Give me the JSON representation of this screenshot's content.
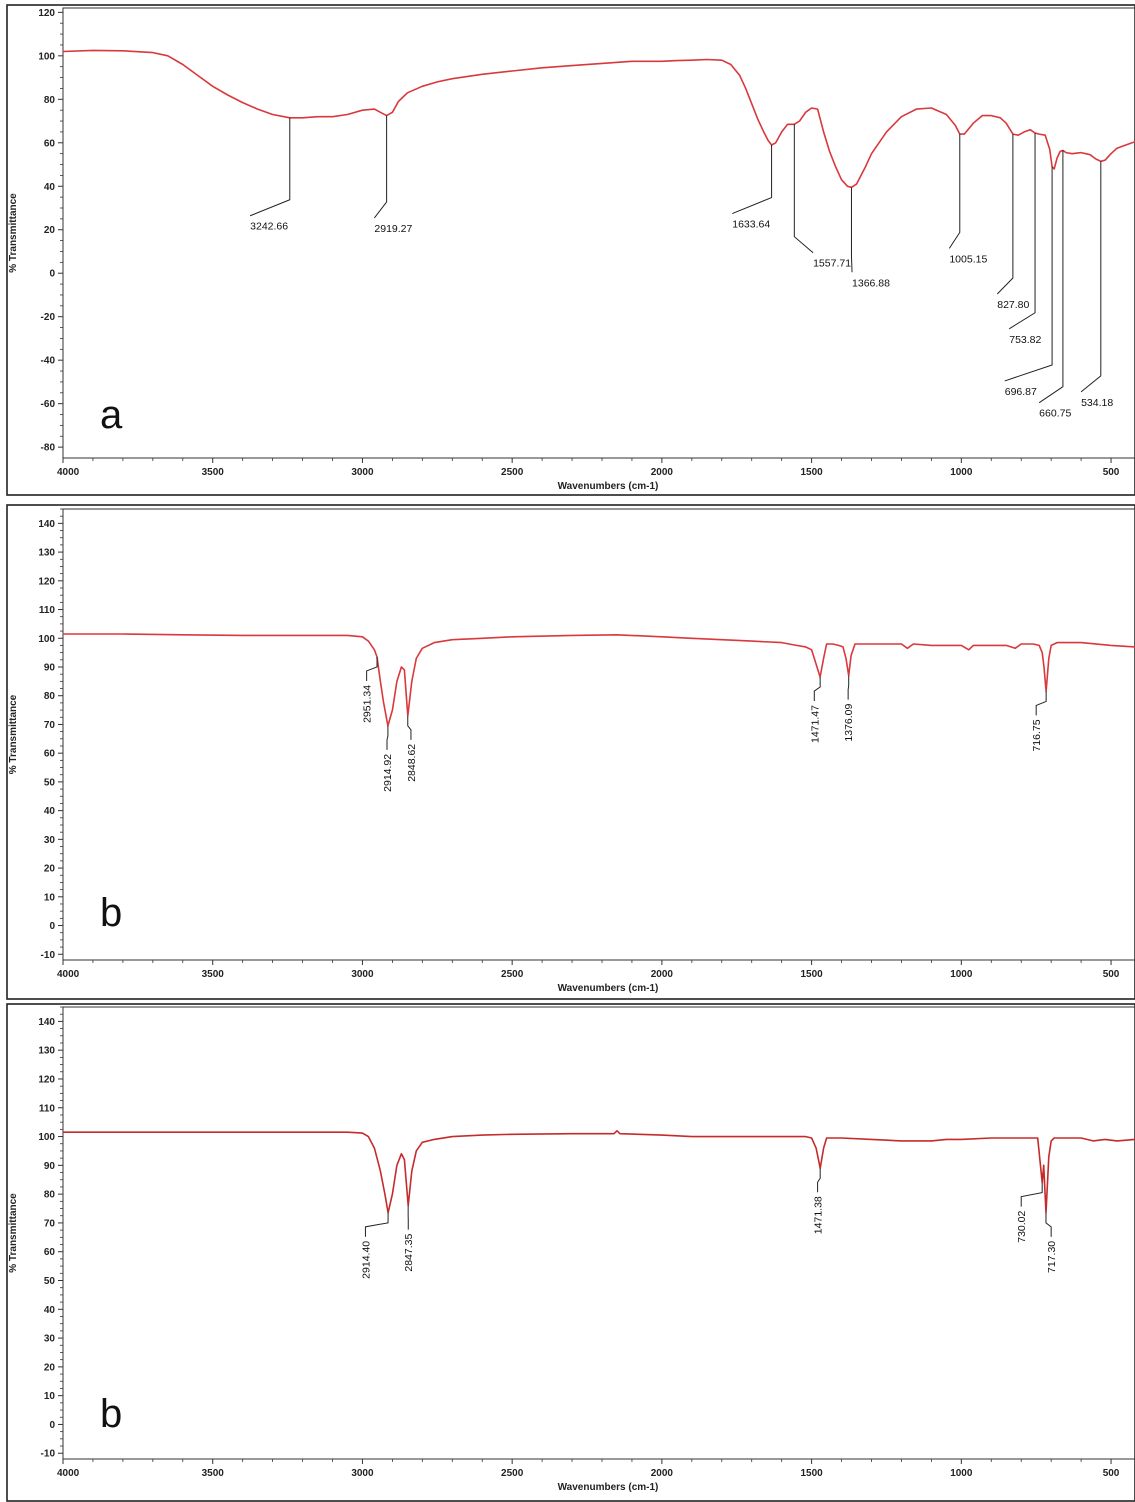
{
  "chart_data": [
    {
      "type": "line",
      "panel_label": "a",
      "xlabel": "Wavenumbers (cm-1)",
      "ylabel": "% Transmittance",
      "xlim": [
        4000,
        420
      ],
      "ylim": [
        -85,
        122
      ],
      "x_ticks": [
        4000,
        3500,
        3000,
        2500,
        2000,
        1500,
        1000,
        500
      ],
      "y_ticks": [
        -80,
        -60,
        -40,
        -20,
        0,
        20,
        40,
        60,
        80,
        100,
        120
      ],
      "line_color": "#d9383c",
      "series": [
        {
          "x": [
            4000,
            3900,
            3800,
            3700,
            3650,
            3600,
            3550,
            3500,
            3450,
            3400,
            3350,
            3300,
            3242.66,
            3200,
            3150,
            3100,
            3050,
            3000,
            2960,
            2940,
            2919.27,
            2900,
            2880,
            2850,
            2800,
            2750,
            2700,
            2600,
            2500,
            2400,
            2300,
            2200,
            2100,
            2000,
            1950,
            1900,
            1850,
            1800,
            1770,
            1740,
            1720,
            1700,
            1680,
            1660,
            1645,
            1633.64,
            1620,
            1600,
            1580,
            1557.71,
            1540,
            1520,
            1500,
            1480,
            1460,
            1440,
            1420,
            1400,
            1380,
            1366.88,
            1350,
            1320,
            1300,
            1250,
            1200,
            1150,
            1100,
            1050,
            1020,
            1005.15,
            990,
            960,
            930,
            900,
            870,
            850,
            827.8,
            810,
            790,
            770,
            753.82,
            740,
            720,
            705,
            696.87,
            690,
            680,
            670,
            660.75,
            650,
            630,
            600,
            570,
            550,
            534.18,
            520,
            500,
            480,
            460,
            440,
            420
          ],
          "y": [
            102,
            102.5,
            102.3,
            101.5,
            100,
            96,
            91,
            86,
            82,
            78.5,
            75.5,
            73,
            71.5,
            71.5,
            72,
            72,
            73,
            75,
            75.5,
            74,
            72.5,
            74,
            79,
            83,
            86,
            88,
            89.5,
            91.5,
            93,
            94.5,
            95.5,
            96.5,
            97.5,
            97.5,
            97.8,
            98,
            98.3,
            98,
            96,
            91,
            85,
            78,
            71,
            65,
            61,
            59,
            60,
            65,
            68.5,
            68.5,
            70,
            74,
            76,
            75.5,
            65,
            56,
            49,
            43,
            40,
            39.5,
            41,
            49,
            55,
            65,
            72,
            75.5,
            76,
            73,
            68,
            64,
            64,
            69,
            72.5,
            72.5,
            71.5,
            69,
            64,
            63.5,
            65,
            66,
            64.5,
            64,
            63.5,
            57,
            49,
            48,
            53,
            56,
            56.5,
            55.5,
            55,
            55.5,
            54.5,
            52.5,
            51.5,
            52,
            55,
            57.5,
            58.5,
            59.5,
            60.5
          ]
        }
      ],
      "peaks": [
        {
          "label": "3242.66",
          "x": 3242.66,
          "y": 71.5,
          "label_x": 3375,
          "label_y": 20
        },
        {
          "label": "2919.27",
          "x": 2919.27,
          "y": 72.5,
          "label_x": 2960,
          "label_y": 19
        },
        {
          "label": "1633.64",
          "x": 1633.64,
          "y": 59,
          "label_x": 1765,
          "label_y": 21
        },
        {
          "label": "1557.71",
          "x": 1557.71,
          "y": 68.5,
          "label_x": 1495,
          "label_y": 3
        },
        {
          "label": "1366.88",
          "x": 1366.88,
          "y": 39.5,
          "label_x": 1365,
          "label_y": -6
        },
        {
          "label": "1005.15",
          "x": 1005.15,
          "y": 64,
          "label_x": 1040,
          "label_y": 5
        },
        {
          "label": "827.80",
          "x": 827.8,
          "y": 64,
          "label_x": 880,
          "label_y": -16
        },
        {
          "label": "753.82",
          "x": 753.82,
          "y": 64.5,
          "label_x": 840,
          "label_y": -32
        },
        {
          "label": "696.87",
          "x": 696.87,
          "y": 49,
          "label_x": 855,
          "label_y": -56
        },
        {
          "label": "660.75",
          "x": 660.75,
          "y": 56.5,
          "label_x": 740,
          "label_y": -66
        },
        {
          "label": "534.18",
          "x": 534.18,
          "y": 51.5,
          "label_x": 600,
          "label_y": -61
        }
      ]
    },
    {
      "type": "line",
      "panel_label": "b",
      "xlabel": "Wavenumbers (cm-1)",
      "ylabel": "% Transmittance",
      "xlim": [
        4000,
        420
      ],
      "ylim": [
        -12,
        145
      ],
      "x_ticks": [
        4000,
        3500,
        3000,
        2500,
        2000,
        1500,
        1000,
        500
      ],
      "y_ticks": [
        -10,
        0,
        10,
        20,
        30,
        40,
        50,
        60,
        70,
        80,
        90,
        100,
        110,
        120,
        130,
        140
      ],
      "line_color": "#d9383c",
      "series": [
        {
          "x": [
            4000,
            3800,
            3600,
            3400,
            3200,
            3050,
            3000,
            2980,
            2960,
            2951.34,
            2940,
            2930,
            2914.92,
            2900,
            2885,
            2870,
            2860,
            2848.62,
            2835,
            2820,
            2800,
            2760,
            2700,
            2600,
            2500,
            2300,
            2150,
            2000,
            1900,
            1800,
            1700,
            1600,
            1550,
            1520,
            1500,
            1485,
            1471.47,
            1460,
            1450,
            1430,
            1410,
            1395,
            1385,
            1376.09,
            1368,
            1355,
            1330,
            1300,
            1250,
            1200,
            1180,
            1160,
            1100,
            1000,
            975,
            960,
            900,
            850,
            820,
            800,
            760,
            740,
            730,
            724,
            716.75,
            708,
            700,
            680,
            600,
            500,
            420
          ],
          "y": [
            101.5,
            101.5,
            101.2,
            101,
            101,
            101,
            100.5,
            99,
            96,
            93.5,
            85,
            78,
            69.5,
            75,
            85,
            90,
            89,
            73,
            85,
            93,
            96.5,
            98.5,
            99.5,
            100,
            100.5,
            101,
            101.2,
            100.5,
            100,
            99.5,
            99,
            98.5,
            97.5,
            97,
            96,
            91,
            86.5,
            93,
            98,
            98,
            97.5,
            97,
            93,
            87,
            94,
            98,
            98,
            98,
            98,
            98,
            96.5,
            98,
            97.5,
            97.5,
            96,
            97.5,
            97.5,
            97.5,
            96.5,
            98,
            98,
            97.5,
            95,
            90,
            81.5,
            93,
            97.5,
            98.5,
            98.5,
            97.5,
            97
          ]
        }
      ],
      "peaks": [
        {
          "label": "2951.34",
          "x": 2951.34,
          "y": 93.5,
          "label_x": 2986,
          "label_y": 76,
          "rotated": true
        },
        {
          "label": "2914.92",
          "x": 2914.92,
          "y": 69.5,
          "label_x": 2918,
          "label_y": 70,
          "rotated": true
        },
        {
          "label": "2848.62",
          "x": 2848.62,
          "y": 73,
          "label_x": 2838,
          "label_y": 68,
          "rotated": true
        },
        {
          "label": "1471.47",
          "x": 1471.47,
          "y": 86.5,
          "label_x": 1491,
          "label_y": 82,
          "rotated": true
        },
        {
          "label": "1376.09",
          "x": 1376.09,
          "y": 87,
          "label_x": 1378,
          "label_y": 82,
          "rotated": true
        },
        {
          "label": "716.75",
          "x": 716.75,
          "y": 81.5,
          "label_x": 750,
          "label_y": 80,
          "rotated": true
        }
      ]
    },
    {
      "type": "line",
      "panel_label": "b",
      "xlabel": "Wavenumbers (cm-1)",
      "ylabel": "% Transmittance",
      "xlim": [
        4000,
        420
      ],
      "ylim": [
        -12,
        145
      ],
      "x_ticks": [
        4000,
        3500,
        3000,
        2500,
        2000,
        1500,
        1000,
        500
      ],
      "y_ticks": [
        -10,
        0,
        10,
        20,
        30,
        40,
        50,
        60,
        70,
        80,
        90,
        100,
        110,
        120,
        130,
        140
      ],
      "line_color": "#c52b2b",
      "series": [
        {
          "x": [
            4000,
            3800,
            3600,
            3400,
            3200,
            3050,
            3000,
            2980,
            2960,
            2940,
            2925,
            2914.4,
            2900,
            2885,
            2870,
            2860,
            2847.35,
            2835,
            2820,
            2800,
            2760,
            2700,
            2600,
            2500,
            2300,
            2160,
            2150,
            2140,
            2000,
            1900,
            1800,
            1700,
            1600,
            1520,
            1500,
            1485,
            1471.38,
            1460,
            1450,
            1400,
            1300,
            1200,
            1150,
            1100,
            1050,
            1000,
            900,
            800,
            760,
            745,
            730.02,
            725,
            717.3,
            708,
            700,
            690,
            600,
            560,
            520,
            480,
            420
          ],
          "y": [
            101.5,
            101.5,
            101.5,
            101.5,
            101.5,
            101.5,
            101.2,
            100,
            96,
            88,
            80,
            73.5,
            80,
            90,
            94,
            92,
            76,
            88,
            95,
            98,
            99,
            100,
            100.5,
            100.8,
            101,
            101,
            102,
            101,
            100.5,
            100,
            100,
            100,
            100,
            100,
            99.5,
            96,
            89,
            96,
            99.5,
            99.5,
            99,
            98.5,
            98.5,
            98.5,
            99,
            99,
            99.5,
            99.5,
            99.5,
            99.5,
            84,
            90,
            73.5,
            93,
            98.5,
            99.5,
            99.5,
            98.5,
            99,
            98.5,
            99
          ]
        }
      ],
      "peaks": [
        {
          "label": "2914.40",
          "x": 2914.4,
          "y": 73.5,
          "label_x": 2990,
          "label_y": 70,
          "rotated": true
        },
        {
          "label": "2847.35",
          "x": 2847.35,
          "y": 76,
          "label_x": 2847,
          "label_y": 70,
          "rotated": true
        },
        {
          "label": "1471.38",
          "x": 1471.38,
          "y": 89,
          "label_x": 1480,
          "label_y": 78,
          "rotated": true
        },
        {
          "label": "730.02",
          "x": 730.02,
          "y": 84,
          "label_x": 800,
          "label_y": 75,
          "rotated": true
        },
        {
          "label": "717.30",
          "x": 717.3,
          "y": 73.5,
          "label_x": 700,
          "label_y": 70,
          "rotated": true
        }
      ]
    }
  ]
}
